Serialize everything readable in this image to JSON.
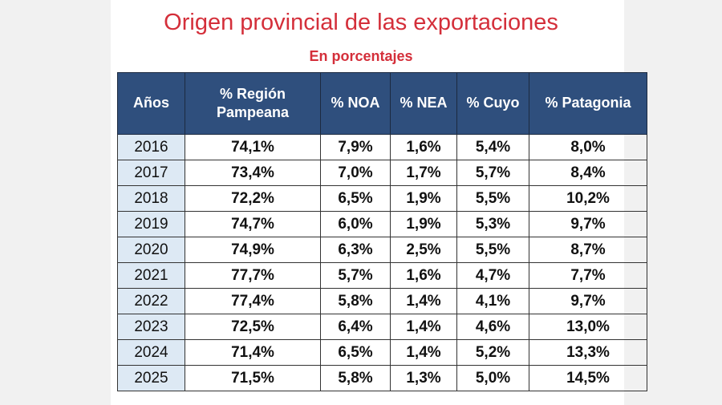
{
  "title": "Origen provincial de las  exportaciones",
  "subtitle": "En porcentajes",
  "colors": {
    "title": "#d42f3a",
    "header_bg": "#2f4f7d",
    "year_bg": "#dde9f4"
  },
  "chart_data": {
    "type": "table",
    "title": "Origen provincial de las  exportaciones",
    "subtitle": "En porcentajes",
    "columns": [
      "Años",
      "% Región Pampeana",
      "% NOA",
      "% NEA",
      "% Cuyo",
      "% Patagonia"
    ],
    "rows": [
      [
        "2016",
        "74,1%",
        "7,9%",
        "1,6%",
        "5,4%",
        "8,0%"
      ],
      [
        "2017",
        "73,4%",
        "7,0%",
        "1,7%",
        "5,7%",
        "8,4%"
      ],
      [
        "2018",
        "72,2%",
        "6,5%",
        "1,9%",
        "5,5%",
        "10,2%"
      ],
      [
        "2019",
        "74,7%",
        "6,0%",
        "1,9%",
        "5,3%",
        "9,7%"
      ],
      [
        "2020",
        "74,9%",
        "6,3%",
        "2,5%",
        "5,5%",
        "8,7%"
      ],
      [
        "2021",
        "77,7%",
        "5,7%",
        "1,6%",
        "4,7%",
        "7,7%"
      ],
      [
        "2022",
        "77,4%",
        "5,8%",
        "1,4%",
        "4,1%",
        "9,7%"
      ],
      [
        "2023",
        "72,5%",
        "6,4%",
        "1,4%",
        "4,6%",
        "13,0%"
      ],
      [
        "2024",
        "71,4%",
        "6,5%",
        "1,4%",
        "5,2%",
        "13,3%"
      ],
      [
        "2025",
        "71,5%",
        "5,8%",
        "1,3%",
        "5,0%",
        "14,5%"
      ]
    ]
  }
}
